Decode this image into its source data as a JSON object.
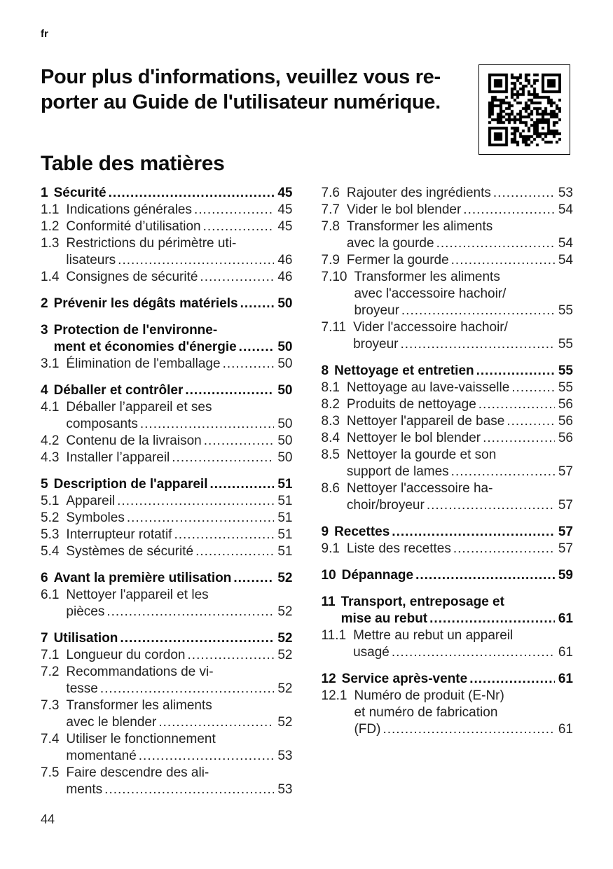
{
  "colors": {
    "background": "#ffffff",
    "text": "#1c1c1c"
  },
  "page": {
    "lang_tag": "fr",
    "heading_lines": [
      "Pour plus d'informations, veuillez vous re-",
      "porter au Guide de l'utilisateur numérique."
    ],
    "toc_title": "Table des matières",
    "page_number": "44"
  },
  "qr": {
    "icon": "qr-code-icon"
  },
  "toc": {
    "columns": [
      {
        "entries": [
          {
            "num": "1",
            "bold": true,
            "lines": [
              "Sécurité"
            ],
            "page": "45"
          },
          {
            "num": "1.1",
            "bold": false,
            "lines": [
              "Indications générales"
            ],
            "page": "45"
          },
          {
            "num": "1.2",
            "bold": false,
            "lines": [
              "Conformité d’utilisation"
            ],
            "page": "45"
          },
          {
            "num": "1.3",
            "bold": false,
            "lines": [
              "Restrictions du périmètre uti-",
              "lisateurs"
            ],
            "page": "46"
          },
          {
            "num": "1.4",
            "bold": false,
            "lines": [
              "Consignes de sécurité"
            ],
            "page": "46"
          },
          {
            "num": "2",
            "bold": true,
            "lines": [
              "Prévenir les dégâts matériels"
            ],
            "page": "50"
          },
          {
            "num": "3",
            "bold": true,
            "lines": [
              "Protection de l'environne-",
              "ment et économies d'énergie"
            ],
            "page": "50"
          },
          {
            "num": "3.1",
            "bold": false,
            "lines": [
              "Élimination de l'emballage"
            ],
            "page": "50"
          },
          {
            "num": "4",
            "bold": true,
            "lines": [
              "Déballer et contrôler"
            ],
            "page": "50"
          },
          {
            "num": "4.1",
            "bold": false,
            "lines": [
              "Déballer l’appareil et ses",
              "composants"
            ],
            "page": "50"
          },
          {
            "num": "4.2",
            "bold": false,
            "lines": [
              "Contenu de la livraison"
            ],
            "page": "50"
          },
          {
            "num": "4.3",
            "bold": false,
            "lines": [
              "Installer l’appareil"
            ],
            "page": "50"
          },
          {
            "num": "5",
            "bold": true,
            "lines": [
              "Description de l'appareil"
            ],
            "page": "51"
          },
          {
            "num": "5.1",
            "bold": false,
            "lines": [
              "Appareil"
            ],
            "page": "51"
          },
          {
            "num": "5.2",
            "bold": false,
            "lines": [
              "Symboles"
            ],
            "page": "51"
          },
          {
            "num": "5.3",
            "bold": false,
            "lines": [
              "Interrupteur rotatif"
            ],
            "page": "51"
          },
          {
            "num": "5.4",
            "bold": false,
            "lines": [
              "Systèmes de sécurité"
            ],
            "page": "51"
          },
          {
            "num": "6",
            "bold": true,
            "lines": [
              "Avant la première utilisation"
            ],
            "page": "52"
          },
          {
            "num": "6.1",
            "bold": false,
            "lines": [
              "Nettoyer l'appareil et les",
              "pièces"
            ],
            "page": "52"
          },
          {
            "num": "7",
            "bold": true,
            "lines": [
              "Utilisation"
            ],
            "page": "52"
          },
          {
            "num": "7.1",
            "bold": false,
            "lines": [
              "Longueur du cordon"
            ],
            "page": "52"
          },
          {
            "num": "7.2",
            "bold": false,
            "lines": [
              "Recommandations de vi-",
              "tesse"
            ],
            "page": "52"
          },
          {
            "num": "7.3",
            "bold": false,
            "lines": [
              "Transformer les aliments",
              "avec le blender"
            ],
            "page": "52"
          },
          {
            "num": "7.4",
            "bold": false,
            "lines": [
              "Utiliser le fonctionnement",
              "momentané"
            ],
            "page": "53"
          },
          {
            "num": "7.5",
            "bold": false,
            "lines": [
              "Faire descendre des ali-",
              "ments"
            ],
            "page": "53"
          }
        ]
      },
      {
        "entries": [
          {
            "num": "7.6",
            "bold": false,
            "lines": [
              "Rajouter des ingrédients"
            ],
            "page": "53"
          },
          {
            "num": "7.7",
            "bold": false,
            "lines": [
              "Vider le bol blender"
            ],
            "page": "54"
          },
          {
            "num": "7.8",
            "bold": false,
            "lines": [
              "Transformer les aliments",
              "avec la gourde"
            ],
            "page": "54"
          },
          {
            "num": "7.9",
            "bold": false,
            "lines": [
              "Fermer la gourde"
            ],
            "page": "54"
          },
          {
            "num": "7.10",
            "bold": false,
            "lines": [
              "Transformer les aliments",
              "avec l'accessoire hachoir/",
              "broyeur"
            ],
            "page": "55"
          },
          {
            "num": "7.11",
            "bold": false,
            "lines": [
              "Vider l'accessoire hachoir/",
              "broyeur"
            ],
            "page": "55"
          },
          {
            "num": "8",
            "bold": true,
            "lines": [
              "Nettoyage et entretien"
            ],
            "page": "55"
          },
          {
            "num": "8.1",
            "bold": false,
            "lines": [
              "Nettoyage au lave-vaisselle"
            ],
            "page": "55"
          },
          {
            "num": "8.2",
            "bold": false,
            "lines": [
              "Produits de nettoyage"
            ],
            "page": "56"
          },
          {
            "num": "8.3",
            "bold": false,
            "lines": [
              "Nettoyer l'appareil de base"
            ],
            "page": "56"
          },
          {
            "num": "8.4",
            "bold": false,
            "lines": [
              "Nettoyer le bol blender"
            ],
            "page": "56"
          },
          {
            "num": "8.5",
            "bold": false,
            "lines": [
              "Nettoyer la gourde et son",
              "support de lames"
            ],
            "page": "57"
          },
          {
            "num": "8.6",
            "bold": false,
            "lines": [
              "Nettoyer l'accessoire ha-",
              "choir/broyeur"
            ],
            "page": "57"
          },
          {
            "num": "9",
            "bold": true,
            "lines": [
              "Recettes"
            ],
            "page": "57"
          },
          {
            "num": "9.1",
            "bold": false,
            "lines": [
              "Liste des recettes"
            ],
            "page": "57"
          },
          {
            "num": "10",
            "bold": true,
            "lines": [
              "Dépannage"
            ],
            "page": "59"
          },
          {
            "num": "11",
            "bold": true,
            "lines": [
              "Transport, entreposage et",
              "mise au rebut"
            ],
            "page": "61"
          },
          {
            "num": "11.1",
            "bold": false,
            "lines": [
              "Mettre au rebut un appareil",
              "usagé"
            ],
            "page": "61"
          },
          {
            "num": "12",
            "bold": true,
            "lines": [
              "Service après-vente"
            ],
            "page": "61"
          },
          {
            "num": "12.1",
            "bold": false,
            "lines": [
              "Numéro de produit (E-Nr)",
              "et numéro de fabrication",
              "(FD)"
            ],
            "page": "61"
          }
        ]
      }
    ]
  }
}
